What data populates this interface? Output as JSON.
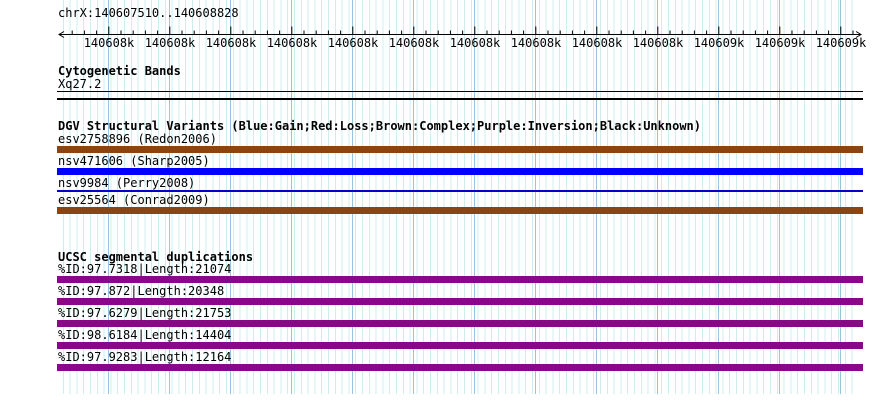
{
  "header": {
    "region_label": "chrX:140607510..140608828"
  },
  "ruler": {
    "tick_labels": [
      "140608k",
      "140608k",
      "140608k",
      "140608k",
      "140608k",
      "140608k",
      "140608k",
      "140608k",
      "140608k",
      "140608k",
      "140609k",
      "140609k",
      "140609k"
    ]
  },
  "tracks": {
    "cytogenetic_bands": {
      "title": "Cytogenetic Bands",
      "band_label": "Xq27.2"
    },
    "dgv_structural_variants": {
      "title": "DGV Structural Variants (Blue:Gain;Red:Loss;Brown:Complex;Purple:Inversion;Black:Unknown)",
      "variants": [
        {
          "label": "esv2758896 (Redon2006)",
          "color": "#8B4513",
          "thickness": "7px"
        },
        {
          "label": "nsv471606 (Sharp2005)",
          "color": "#0000FF",
          "thickness": "7px"
        },
        {
          "label": "nsv9984 (Perry2008)",
          "color": "#0000CC",
          "thickness": "2px"
        },
        {
          "label": "esv25564 (Conrad2009)",
          "color": "#8B4513",
          "thickness": "7px"
        }
      ]
    },
    "ucsc_segmental_duplications": {
      "title": "UCSC segmental duplications",
      "duplications": [
        {
          "label": "%ID:97.7318|Length:21074",
          "color": "#880888",
          "thickness": "7px"
        },
        {
          "label": "%ID:97.872|Length:20348",
          "color": "#880888",
          "thickness": "7px"
        },
        {
          "label": "%ID:97.6279|Length:21753",
          "color": "#880888",
          "thickness": "7px"
        },
        {
          "label": "%ID:98.6184|Length:14404",
          "color": "#880888",
          "thickness": "7px"
        },
        {
          "label": "%ID:97.9283|Length:12164",
          "color": "#880888",
          "thickness": "7px"
        }
      ]
    }
  },
  "colors": {
    "grid_light_line": "#CFEDED",
    "grid_major_line": "#9CC3DD",
    "ruler_line": "#000000",
    "text": "#000000"
  }
}
